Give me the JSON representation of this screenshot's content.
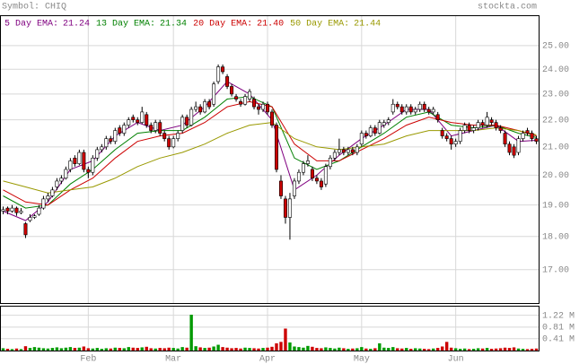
{
  "chart_data": {
    "type": "candlestick",
    "title": "Symbol: CHIQ",
    "source": "stockta.com",
    "log_scale": true,
    "grid": true,
    "up_color": "#ffffff",
    "down_color": "#cc0000",
    "xlim": [
      -0.5,
      119.5
    ],
    "xticks": [
      {
        "value": 19,
        "label": "Feb"
      },
      {
        "value": 38,
        "label": "Mar"
      },
      {
        "value": 59,
        "label": "Apr"
      },
      {
        "value": 80,
        "label": "May"
      },
      {
        "value": 101,
        "label": "Jun"
      }
    ],
    "ylim": [
      16.05,
      26.3
    ],
    "yticks": [
      {
        "value": 17,
        "label": "17.00"
      },
      {
        "value": 18,
        "label": "18.00"
      },
      {
        "value": 19,
        "label": "19.00"
      },
      {
        "value": 20,
        "label": "20.00"
      },
      {
        "value": 21,
        "label": "21.00"
      },
      {
        "value": 22,
        "label": "22.00"
      },
      {
        "value": 23,
        "label": "23.00"
      },
      {
        "value": 24,
        "label": "24.00"
      },
      {
        "value": 25,
        "label": "25.00"
      }
    ],
    "open": [
      18.8,
      18.9,
      18.8,
      18.9,
      18.75,
      18.4,
      18.5,
      18.6,
      18.7,
      18.9,
      19.2,
      19.3,
      19.6,
      19.8,
      19.9,
      20.2,
      20.6,
      20.4,
      20.8,
      20.2,
      20.1,
      20.6,
      20.9,
      21.0,
      21.3,
      21.2,
      21.7,
      21.5,
      21.8,
      22.1,
      22.0,
      21.9,
      22.2,
      21.8,
      21.6,
      21.9,
      21.5,
      21.3,
      21.0,
      21.3,
      21.6,
      22.1,
      21.8,
      22.4,
      22.5,
      22.3,
      22.7,
      22.6,
      23.5,
      24.1,
      23.7,
      23.3,
      22.9,
      22.7,
      22.6,
      22.8,
      22.8,
      22.5,
      22.4,
      22.6,
      22.3,
      21.8,
      19.8,
      19.2,
      18.6,
      19.3,
      19.8,
      20.1,
      20.4,
      20.2,
      19.9,
      19.8,
      19.7,
      20.3,
      20.6,
      20.8,
      20.9,
      20.8,
      20.9,
      20.8,
      21.1,
      21.5,
      21.4,
      21.7,
      21.5,
      21.8,
      21.9,
      22.3,
      22.6,
      22.5,
      22.3,
      22.5,
      22.3,
      22.4,
      22.6,
      22.4,
      22.3,
      22.2,
      21.6,
      21.4,
      21.3,
      21.1,
      21.2,
      21.6,
      21.8,
      21.6,
      21.7,
      21.9,
      21.8,
      22.0,
      21.9,
      21.7,
      21.5,
      21.1,
      21.0,
      20.8,
      21.3,
      21.6,
      21.5,
      21.3
    ],
    "high": [
      18.95,
      18.95,
      19.0,
      18.95,
      18.9,
      18.45,
      18.7,
      18.7,
      19.0,
      19.3,
      19.4,
      19.6,
      19.9,
      20.0,
      20.3,
      20.6,
      20.7,
      20.9,
      20.9,
      20.3,
      20.7,
      21.0,
      21.1,
      21.4,
      21.4,
      21.7,
      21.8,
      21.9,
      22.1,
      22.2,
      22.1,
      22.5,
      22.3,
      21.9,
      22.0,
      22.0,
      21.6,
      21.4,
      21.4,
      21.6,
      22.2,
      22.2,
      22.5,
      22.7,
      22.6,
      22.8,
      22.8,
      23.5,
      24.2,
      24.2,
      23.8,
      23.4,
      23.0,
      22.8,
      23.0,
      23.2,
      22.9,
      22.6,
      22.7,
      22.7,
      22.4,
      21.9,
      20.0,
      19.3,
      19.4,
      19.9,
      20.2,
      20.5,
      20.7,
      20.3,
      20.0,
      19.9,
      20.4,
      20.7,
      20.9,
      21.3,
      21.0,
      21.0,
      21.0,
      21.1,
      21.6,
      21.6,
      21.8,
      21.8,
      22.0,
      22.0,
      22.1,
      22.8,
      22.7,
      22.6,
      22.6,
      22.6,
      22.5,
      22.7,
      22.7,
      22.5,
      22.5,
      22.3,
      21.7,
      21.5,
      21.4,
      21.3,
      21.7,
      21.9,
      21.9,
      21.8,
      22.0,
      22.0,
      22.3,
      22.1,
      22.0,
      21.8,
      21.6,
      21.2,
      21.1,
      21.4,
      21.6,
      21.7,
      21.6,
      21.4
    ],
    "low": [
      18.7,
      18.7,
      18.75,
      18.65,
      18.7,
      17.95,
      18.45,
      18.55,
      18.65,
      18.85,
      19.1,
      19.25,
      19.5,
      19.7,
      19.85,
      20.1,
      20.3,
      20.35,
      20.1,
      19.9,
      20.0,
      20.5,
      20.8,
      20.9,
      21.1,
      21.1,
      21.4,
      21.4,
      21.7,
      21.9,
      21.8,
      21.85,
      21.7,
      21.5,
      21.5,
      21.4,
      21.2,
      20.9,
      20.95,
      21.2,
      21.5,
      21.7,
      21.75,
      22.3,
      22.2,
      22.25,
      22.4,
      22.5,
      23.4,
      23.8,
      23.2,
      22.9,
      22.7,
      22.5,
      22.55,
      22.7,
      22.4,
      22.2,
      22.3,
      22.2,
      21.7,
      20.1,
      19.2,
      18.4,
      17.9,
      19.2,
      19.7,
      20.0,
      20.3,
      19.8,
      19.7,
      19.5,
      19.6,
      20.2,
      20.5,
      20.7,
      20.7,
      20.7,
      20.7,
      20.7,
      21.0,
      21.3,
      21.35,
      21.4,
      21.45,
      21.7,
      21.8,
      22.2,
      22.4,
      22.2,
      22.2,
      22.2,
      22.2,
      22.3,
      22.3,
      22.2,
      22.2,
      21.9,
      21.3,
      21.2,
      20.9,
      21.0,
      21.1,
      21.5,
      21.5,
      21.5,
      21.6,
      21.7,
      21.7,
      21.8,
      21.6,
      21.5,
      21.0,
      20.7,
      20.6,
      20.7,
      21.2,
      21.4,
      21.2,
      21.1
    ],
    "close": [
      18.85,
      18.8,
      18.9,
      18.75,
      18.8,
      18.05,
      18.6,
      18.65,
      18.9,
      19.2,
      19.3,
      19.5,
      19.8,
      19.9,
      20.2,
      20.5,
      20.4,
      20.8,
      20.2,
      20.1,
      20.6,
      20.9,
      21.0,
      21.3,
      21.2,
      21.6,
      21.5,
      21.8,
      22.0,
      22.0,
      21.9,
      22.3,
      21.8,
      21.6,
      21.9,
      21.5,
      21.3,
      21.0,
      21.3,
      21.5,
      22.1,
      21.8,
      22.4,
      22.5,
      22.3,
      22.7,
      22.5,
      23.4,
      24.1,
      23.9,
      23.3,
      23.0,
      22.8,
      22.6,
      22.9,
      23.1,
      22.5,
      22.4,
      22.6,
      22.3,
      21.8,
      20.2,
      19.3,
      18.6,
      19.2,
      19.8,
      20.1,
      20.4,
      20.5,
      19.9,
      19.8,
      19.6,
      20.3,
      20.6,
      20.8,
      20.9,
      20.8,
      20.9,
      20.8,
      21.0,
      21.5,
      21.4,
      21.7,
      21.5,
      21.9,
      21.9,
      22.0,
      22.6,
      22.5,
      22.3,
      22.5,
      22.3,
      22.4,
      22.6,
      22.4,
      22.3,
      22.4,
      22.0,
      21.4,
      21.3,
      21.1,
      21.2,
      21.6,
      21.8,
      21.6,
      21.7,
      21.9,
      21.8,
      22.1,
      21.9,
      21.7,
      21.6,
      21.1,
      20.8,
      20.7,
      21.3,
      21.5,
      21.5,
      21.3,
      21.2
    ],
    "series": [
      {
        "name": "5 Day EMA:",
        "color": "#800080",
        "last": {
          "value": 21.24,
          "label": "21.24"
        },
        "x": [
          0,
          5,
          10,
          15,
          20,
          25,
          30,
          35,
          40,
          45,
          50,
          55,
          60,
          65,
          70,
          75,
          80,
          85,
          90,
          95,
          100,
          105,
          110,
          115,
          119
        ],
        "values": [
          18.8,
          18.5,
          19.1,
          20.2,
          20.5,
          21.4,
          21.9,
          21.6,
          21.8,
          22.5,
          23.5,
          23.0,
          22.0,
          19.5,
          20.0,
          20.7,
          21.3,
          21.8,
          22.4,
          22.4,
          21.4,
          21.6,
          21.8,
          21.2,
          21.24
        ]
      },
      {
        "name": "13 Day EMA:",
        "color": "#008000",
        "last": {
          "value": 21.34,
          "label": "21.34"
        },
        "x": [
          0,
          5,
          10,
          15,
          20,
          25,
          30,
          35,
          40,
          45,
          50,
          55,
          60,
          65,
          70,
          75,
          80,
          85,
          90,
          95,
          100,
          105,
          110,
          115,
          119
        ],
        "values": [
          19.3,
          18.9,
          19.0,
          19.7,
          20.2,
          20.9,
          21.5,
          21.6,
          21.6,
          22.1,
          22.8,
          22.9,
          22.5,
          20.6,
          20.2,
          20.5,
          21.0,
          21.5,
          22.1,
          22.3,
          21.8,
          21.7,
          21.8,
          21.5,
          21.34
        ]
      },
      {
        "name": "20 Day EMA:",
        "color": "#cc0000",
        "last": {
          "value": 21.4,
          "label": "21.40"
        },
        "x": [
          0,
          5,
          10,
          15,
          20,
          25,
          30,
          35,
          40,
          45,
          50,
          55,
          60,
          65,
          70,
          75,
          80,
          85,
          90,
          95,
          100,
          105,
          110,
          115,
          119
        ],
        "values": [
          19.5,
          19.1,
          19.0,
          19.5,
          19.9,
          20.6,
          21.2,
          21.4,
          21.5,
          21.9,
          22.5,
          22.7,
          22.5,
          21.1,
          20.5,
          20.5,
          20.9,
          21.3,
          21.8,
          22.1,
          21.9,
          21.8,
          21.8,
          21.6,
          21.4
        ]
      },
      {
        "name": "50 Day EMA:",
        "color": "#999900",
        "last": {
          "value": 21.44,
          "label": "21.44"
        },
        "x": [
          0,
          5,
          10,
          15,
          20,
          25,
          30,
          35,
          40,
          45,
          50,
          55,
          60,
          65,
          70,
          75,
          80,
          85,
          90,
          95,
          100,
          105,
          110,
          115,
          119
        ],
        "values": [
          19.8,
          19.6,
          19.4,
          19.5,
          19.6,
          19.9,
          20.3,
          20.6,
          20.8,
          21.1,
          21.5,
          21.8,
          21.9,
          21.3,
          21.0,
          20.9,
          21.0,
          21.1,
          21.4,
          21.6,
          21.6,
          21.6,
          21.7,
          21.6,
          21.44
        ]
      }
    ],
    "volume": {
      "up_color": "#009900",
      "down_color": "#cc0000",
      "ylim": [
        0,
        1.52
      ],
      "yticks": [
        {
          "value": 0.41,
          "label": "0.41 M"
        },
        {
          "value": 0.81,
          "label": "0.81 M"
        },
        {
          "value": 1.22,
          "label": "1.22 M"
        }
      ],
      "values": [
        0.08,
        0.06,
        0.05,
        0.07,
        0.05,
        0.15,
        0.09,
        0.12,
        0.1,
        0.08,
        0.07,
        0.09,
        0.11,
        0.08,
        0.1,
        0.12,
        0.09,
        0.1,
        0.14,
        0.08,
        0.07,
        0.09,
        0.06,
        0.08,
        0.07,
        0.1,
        0.09,
        0.08,
        0.12,
        0.1,
        0.09,
        0.11,
        0.13,
        0.08,
        0.07,
        0.09,
        0.08,
        0.1,
        0.09,
        0.07,
        0.12,
        0.1,
        1.24,
        0.15,
        0.11,
        0.09,
        0.1,
        0.14,
        0.2,
        0.12,
        0.1,
        0.08,
        0.09,
        0.07,
        0.1,
        0.09,
        0.08,
        0.07,
        0.09,
        0.1,
        0.13,
        0.25,
        0.3,
        0.76,
        0.28,
        0.14,
        0.12,
        0.1,
        0.16,
        0.13,
        0.09,
        0.08,
        0.11,
        0.09,
        0.07,
        0.1,
        0.08,
        0.06,
        0.07,
        0.08,
        0.12,
        0.07,
        0.06,
        0.08,
        0.25,
        0.1,
        0.09,
        0.12,
        0.08,
        0.07,
        0.09,
        0.06,
        0.08,
        0.07,
        0.06,
        0.05,
        0.07,
        0.09,
        0.14,
        0.3,
        0.1,
        0.08,
        0.06,
        0.07,
        0.05,
        0.06,
        0.08,
        0.07,
        0.09,
        0.06,
        0.07,
        0.08,
        0.1,
        0.09,
        0.11,
        0.07,
        0.06,
        0.05,
        0.06,
        0.07
      ]
    }
  }
}
